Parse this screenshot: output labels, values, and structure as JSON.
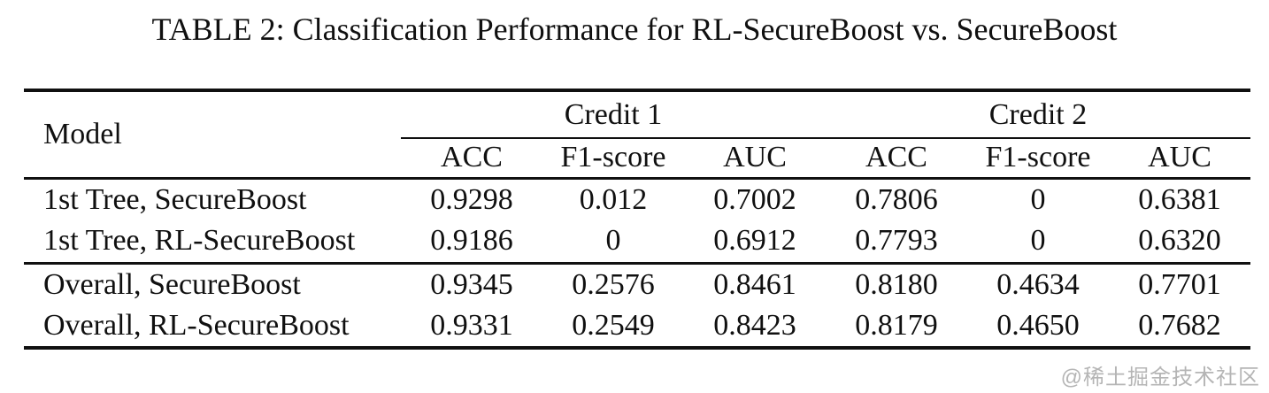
{
  "title": "TABLE 2: Classification Performance for RL-SecureBoost vs. SecureBoost",
  "table": {
    "model_header": "Model",
    "groups": [
      {
        "label": "Credit 1"
      },
      {
        "label": "Credit 2"
      }
    ],
    "col_headers": [
      "ACC",
      "F1-score",
      "AUC",
      "ACC",
      "F1-score",
      "AUC"
    ],
    "rows": [
      {
        "model": "1st Tree, SecureBoost",
        "values": [
          "0.9298",
          "0.012",
          "0.7002",
          "0.7806",
          "0",
          "0.6381"
        ]
      },
      {
        "model": "1st Tree, RL-SecureBoost",
        "values": [
          "0.9186",
          "0",
          "0.6912",
          "0.7793",
          "0",
          "0.6320"
        ]
      },
      {
        "model": "Overall, SecureBoost",
        "values": [
          "0.9345",
          "0.2576",
          "0.8461",
          "0.8180",
          "0.4634",
          "0.7701"
        ]
      },
      {
        "model": "Overall, RL-SecureBoost",
        "values": [
          "0.9331",
          "0.2549",
          "0.8423",
          "0.8179",
          "0.4650",
          "0.7682"
        ]
      }
    ]
  },
  "watermark": "@稀土掘金技术社区",
  "colors": {
    "text": "#101010",
    "background": "#ffffff",
    "rule": "#101010",
    "watermark": "#b5b5b5"
  }
}
